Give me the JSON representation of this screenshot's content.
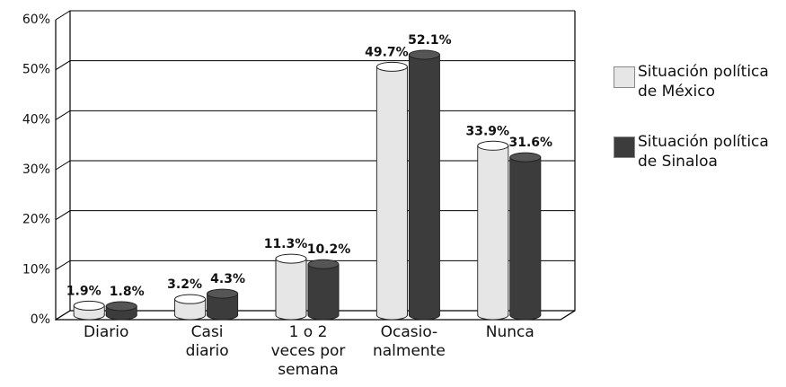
{
  "chart_data": {
    "type": "bar",
    "categories": [
      "Diario",
      "Casi\ndiario",
      "1 o 2\nveces por\nsemana",
      "Ocasio-\nnalmente",
      "Nunca"
    ],
    "series": [
      {
        "name": "Situación política\nde México",
        "color": "#e6e6e6",
        "values": [
          1.9,
          3.2,
          11.3,
          49.7,
          33.9
        ],
        "value_labels": [
          "1.9%",
          "3.2%",
          "11.3%",
          "49.7%",
          "33.9%"
        ]
      },
      {
        "name": "Situación política\nde Sinaloa",
        "color": "#3c3c3c",
        "values": [
          1.8,
          4.3,
          10.2,
          52.1,
          31.6
        ],
        "value_labels": [
          "1.8%",
          "4.3%",
          "10.2%",
          "52.1%",
          "31.6%"
        ]
      }
    ],
    "ylim": [
      0,
      60
    ],
    "yticks": [
      {
        "value": 0,
        "label": "0%"
      },
      {
        "value": 10,
        "label": "10%"
      },
      {
        "value": 20,
        "label": "20%"
      },
      {
        "value": 30,
        "label": "30%"
      },
      {
        "value": 40,
        "label": "40%"
      },
      {
        "value": 50,
        "label": "50%"
      },
      {
        "value": 60,
        "label": "60%"
      }
    ],
    "grid": true
  }
}
